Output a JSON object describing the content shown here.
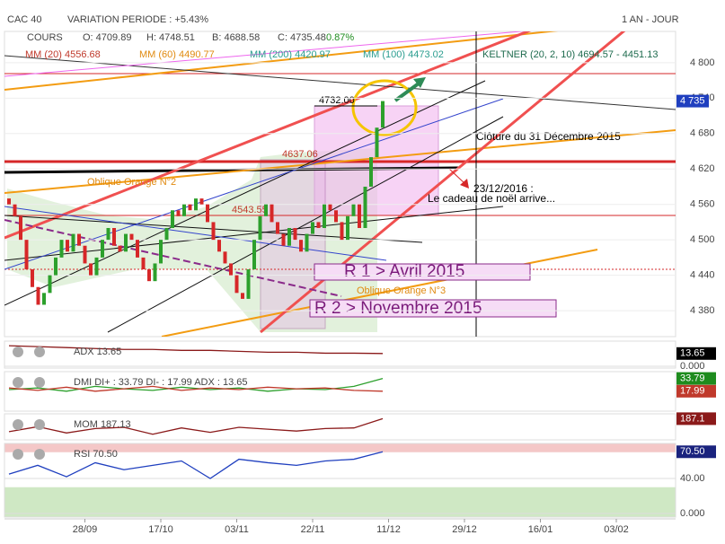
{
  "header": {
    "symbol": "CAC 40",
    "variation": "VARIATION PERIODE : +5.43%",
    "period": "1 AN - JOUR"
  },
  "legend": {
    "cours": "COURS",
    "open": "O: 4709.89",
    "high": "H: 4748.51",
    "low": "B: 4688.58",
    "close": "C: 4735.48",
    "change": "0.87%",
    "mm20": "MM (20) 4556.68",
    "mm60": "MM (60) 4490.77",
    "mm200": "MM (200) 4420.97",
    "mm100": "MM (100) 4473.02",
    "keltner": "KELTNER (20, 2, 10) 4694.57 - 4451.13"
  },
  "annotations": {
    "level": "4732.00",
    "closing": "Clôture du 31 Décembre 2015",
    "date": "23/12/2016 :",
    "gift": "Le cadeau de noël arrive...",
    "oblique2": "Oblique Orange N°2",
    "oblique3": "Oblique Orange N°3",
    "r1": "R 1 > Avril 2015",
    "r2": "R 2 > Novembre 2015",
    "level2": "4637.06",
    "level3": "4543.55"
  },
  "chart_data": [
    {
      "type": "candlestick",
      "up_color": "#2ca02c",
      "down_color": "#d62728",
      "open": [
        4570,
        4560,
        4540,
        4500,
        4450,
        4420,
        4390,
        4410,
        4440,
        4470,
        4500,
        4480,
        4510,
        4490,
        4460,
        4440,
        4470,
        4500,
        4520,
        4490,
        4480,
        4510,
        4500,
        4470,
        4450,
        4430,
        4460,
        4500,
        4520,
        4550,
        4540,
        4560,
        4550,
        4570,
        4560,
        4530,
        4500,
        4480,
        4460,
        4440,
        4410,
        4400,
        4450,
        4500,
        4540,
        4560,
        4530,
        4510,
        4490,
        4520,
        4500,
        4480,
        4510,
        4530,
        4520,
        4560,
        4550,
        4530,
        4500,
        4540,
        4560,
        4520,
        4590,
        4640,
        4690
      ],
      "close": [
        4560,
        4540,
        4500,
        4450,
        4420,
        4390,
        4410,
        4440,
        4470,
        4500,
        4480,
        4510,
        4490,
        4460,
        4440,
        4470,
        4500,
        4520,
        4490,
        4480,
        4510,
        4500,
        4470,
        4450,
        4430,
        4460,
        4500,
        4520,
        4550,
        4540,
        4560,
        4550,
        4570,
        4560,
        4530,
        4500,
        4480,
        4460,
        4440,
        4410,
        4400,
        4450,
        4500,
        4540,
        4560,
        4530,
        4510,
        4490,
        4520,
        4500,
        4480,
        4510,
        4530,
        4520,
        4560,
        4550,
        4530,
        4500,
        4540,
        4560,
        4520,
        4590,
        4640,
        4690,
        4735
      ],
      "xlim": [
        0,
        114
      ],
      "xticks": [
        {
          "value": 13,
          "label": "28/09"
        },
        {
          "value": 26,
          "label": "17/10"
        },
        {
          "value": 39,
          "label": "03/11"
        },
        {
          "value": 52,
          "label": "22/11"
        },
        {
          "value": 65,
          "label": "11/12"
        },
        {
          "value": 78,
          "label": "29/12"
        },
        {
          "value": 91,
          "label": "16/01"
        },
        {
          "value": 104,
          "label": "03/02"
        }
      ],
      "ylim": [
        4336,
        4853
      ],
      "yticks": [
        {
          "value": 4800,
          "label": "4 800"
        },
        {
          "value": 4740,
          "label": "4 740"
        },
        {
          "value": 4680,
          "label": "4 680"
        },
        {
          "value": 4620,
          "label": "4 620"
        },
        {
          "value": 4560,
          "label": "4 560"
        },
        {
          "value": 4500,
          "label": "4 500"
        },
        {
          "value": 4440,
          "label": "4 440"
        },
        {
          "value": 4380,
          "label": "4 380"
        }
      ],
      "last_price": {
        "value": 4735,
        "label": "4 735"
      }
    },
    {
      "type": "line",
      "title": "ADX 13.65",
      "ylim": [
        0,
        25
      ],
      "yticks": [
        {
          "value": 0,
          "label": "0.000"
        }
      ],
      "series": [
        {
          "color": "#8b1a1a",
          "values": [
            22,
            21,
            20,
            19,
            18,
            18,
            17,
            17,
            16,
            15,
            15,
            14,
            14,
            13.65
          ]
        }
      ],
      "tags": [
        {
          "value": 13.65,
          "label": "13.65",
          "color": "#000000"
        }
      ]
    },
    {
      "type": "line",
      "title": "DMI DI+ : 33.79 DI- : 17.99 ADX : 13.65",
      "ylim": [
        0,
        40
      ],
      "yticks": [],
      "series": [
        {
          "color": "#2ca02c",
          "values": [
            20,
            22,
            18,
            24,
            21,
            19,
            23,
            20,
            22,
            18,
            21,
            20,
            24,
            33.79
          ]
        },
        {
          "color": "#c0392b",
          "values": [
            22,
            19,
            23,
            18,
            21,
            24,
            19,
            22,
            20,
            23,
            21,
            22,
            19,
            17.99
          ]
        }
      ],
      "tags": [
        {
          "value": 33.79,
          "label": "33.79",
          "color": "#1e8c1e"
        },
        {
          "value": 17.99,
          "label": "17.99",
          "color": "#c0392b"
        }
      ]
    },
    {
      "type": "line",
      "title": "MOM 187.13",
      "ylim": [
        -150,
        250
      ],
      "yticks": [],
      "series": [
        {
          "color": "#8b1a1a",
          "values": [
            -20,
            60,
            -40,
            30,
            50,
            -60,
            40,
            -30,
            50,
            20,
            -10,
            30,
            40,
            187.13
          ]
        }
      ],
      "tags": [
        {
          "value": 187.13,
          "label": "187.1",
          "color": "#8b1a1a"
        }
      ]
    },
    {
      "type": "line",
      "title": "RSI 70.50",
      "ylim": [
        0,
        80
      ],
      "yticks": [
        {
          "value": 40,
          "label": "40.00"
        },
        {
          "value": 0,
          "label": "0.000"
        }
      ],
      "series": [
        {
          "color": "#1f3fbf",
          "values": [
            45,
            55,
            42,
            58,
            50,
            55,
            60,
            40,
            62,
            58,
            55,
            60,
            62,
            70.5
          ]
        }
      ],
      "tags": [
        {
          "value": 70.5,
          "label": "70.50",
          "color": "#1a237e"
        }
      ]
    }
  ]
}
